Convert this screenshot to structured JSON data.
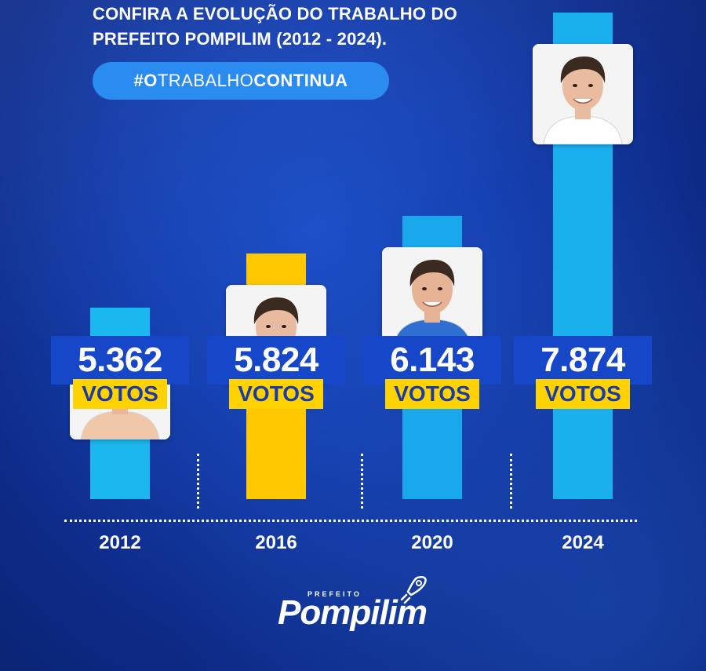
{
  "headline": {
    "line1": "CONFIRA A EVOLUÇÃO DO TRABALHO DO",
    "line2": "PREFEITO POMPILIM (2012 -  2024)."
  },
  "tag": {
    "prefix": "#O",
    "middle": "TRABALHO",
    "suffix": "CONTINUA"
  },
  "chart_data": {
    "type": "bar",
    "categories": [
      "2012",
      "2016",
      "2020",
      "2024"
    ],
    "values": [
      5362,
      5824,
      6143,
      7874
    ],
    "value_labels": [
      "5.362",
      "5.824",
      "6.143",
      "7.874"
    ],
    "unit_label": "VOTOS",
    "bar_colors": [
      "#1ab8ef",
      "#ffc800",
      "#1aa8ec",
      "#1ab0f0"
    ],
    "title": "",
    "xlabel": "",
    "ylabel": "",
    "grid": false,
    "legend": "none"
  },
  "logo": {
    "prefix": "PREFEITO",
    "name": "Pompilim"
  },
  "colors": {
    "background": "#1640b0",
    "value_box": "#1747c9",
    "votes_box": "#ffd200",
    "pill": "#2a8cf0"
  }
}
